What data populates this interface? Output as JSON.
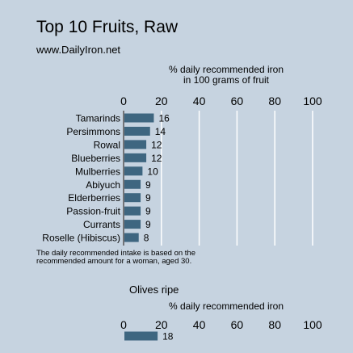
{
  "title": "Top 10 Fruits, Raw",
  "subtitle": "www.DailyIron.net",
  "note": [
    "The daily recommended intake is based on the",
    "recommended amount for a woman, aged 30."
  ],
  "colors": {
    "background": "#c6d3e0",
    "bar": "#3e6680",
    "grid": "#ffffff",
    "text": "#000000"
  },
  "chart_data": [
    {
      "type": "bar",
      "orientation": "horizontal",
      "title": "",
      "xlabel": [
        "% daily recommended iron",
        "in 100 grams of fruit"
      ],
      "ylabel": "",
      "categories": [
        "Tamarinds",
        "Persimmons",
        "Rowal",
        "Blueberries",
        "Mulberries",
        "Abiyuch",
        "Elderberries",
        "Passion-fruit",
        "Currants",
        "Roselle (Hibiscus)"
      ],
      "values": [
        16,
        14,
        12,
        12,
        10,
        9,
        9,
        9,
        9,
        8
      ],
      "xlim": [
        0,
        100
      ],
      "xticks": [
        0,
        20,
        40,
        60,
        80,
        100
      ],
      "grid": true,
      "data_labels": true
    },
    {
      "type": "bar",
      "orientation": "horizontal",
      "title": "Olives ripe",
      "xlabel": [
        "% daily recommended iron"
      ],
      "ylabel": "",
      "categories": [
        ""
      ],
      "values": [
        18
      ],
      "xlim": [
        0,
        100
      ],
      "xticks": [
        0,
        20,
        40,
        60,
        80,
        100
      ],
      "grid": false,
      "data_labels": true
    }
  ]
}
